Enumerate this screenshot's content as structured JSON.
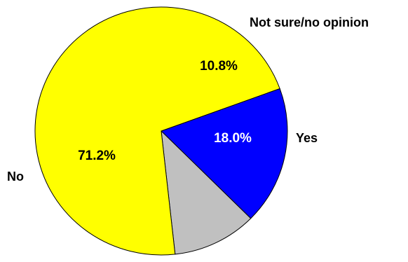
{
  "chart_data": {
    "type": "pie",
    "slices": [
      {
        "label": "Yes",
        "value": 18.0,
        "value_label": "18.0%",
        "color": "#0000ff",
        "value_label_color": "#ffffff"
      },
      {
        "label": "Not sure/no opinion",
        "value": 10.8,
        "value_label": "10.8%",
        "color": "#c0c0c0",
        "value_label_color": "#000000"
      },
      {
        "label": "No",
        "value": 71.2,
        "value_label": "71.2%",
        "color": "#ffff00",
        "value_label_color": "#000000"
      }
    ],
    "legend": "none",
    "title": ""
  }
}
